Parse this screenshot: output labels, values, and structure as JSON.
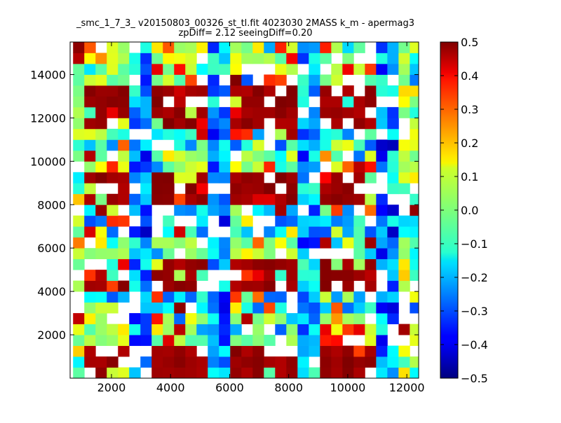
{
  "chart_data": {
    "type": "heatmap",
    "title": "_smc_1_7_3_ v20150803_00326_st_tl.fit 4023030 2MASS k_m - apermag3",
    "subtitle": "zpDiff= 2.12 seeingDiff=0.20",
    "xlabel": "",
    "ylabel": "",
    "xlim": [
      600,
      12400
    ],
    "ylim": [
      0,
      15500
    ],
    "xticks": [
      "2000",
      "4000",
      "6000",
      "8000",
      "10000",
      "12000"
    ],
    "yticks": [
      "2000",
      "4000",
      "6000",
      "8000",
      "10000",
      "12000",
      "14000"
    ],
    "x_tick_values": [
      2000,
      4000,
      6000,
      8000,
      10000,
      12000
    ],
    "y_tick_values": [
      2000,
      4000,
      6000,
      8000,
      10000,
      12000,
      14000
    ],
    "grid": false,
    "colormap": "jet",
    "vmin": -0.5,
    "vmax": 0.5,
    "colorbar_ticks": [
      "0.5",
      "0.4",
      "0.3",
      "0.2",
      "0.1",
      "0.0",
      "−0.1",
      "−0.2",
      "−0.3",
      "−0.4",
      "−0.5"
    ],
    "colorbar_tick_values": [
      0.5,
      0.4,
      0.3,
      0.2,
      0.1,
      0.0,
      -0.1,
      -0.2,
      -0.3,
      -0.4,
      -0.5
    ],
    "grid_cols": 32,
    "grid_rows": 31,
    "cell_width": 380,
    "cell_height": 500,
    "x_start": 700,
    "y_start": 0,
    "pattern_seed": 20150803,
    "row_bands": [
      {
        "from": 0,
        "to": 2,
        "type": "A"
      },
      {
        "from": 3,
        "to": 5,
        "type": "B"
      },
      {
        "from": 6,
        "to": 7,
        "type": "B2"
      },
      {
        "from": 8,
        "to": 10,
        "type": "A"
      },
      {
        "from": 11,
        "to": 12,
        "type": "B"
      },
      {
        "from": 13,
        "to": 15,
        "type": "B2"
      },
      {
        "from": 16,
        "to": 18,
        "type": "A"
      },
      {
        "from": 19,
        "to": 20,
        "type": "B"
      },
      {
        "from": 21,
        "to": 22,
        "type": "B2"
      },
      {
        "from": 23,
        "to": 26,
        "type": "A"
      },
      {
        "from": 27,
        "to": 30,
        "type": "B"
      }
    ],
    "column_bands": [
      {
        "from": 0,
        "to": 0,
        "type": "edge"
      },
      {
        "from": 1,
        "to": 4,
        "type": "red"
      },
      {
        "from": 5,
        "to": 6,
        "type": "blue"
      },
      {
        "from": 7,
        "to": 11,
        "type": "red"
      },
      {
        "from": 12,
        "to": 13,
        "type": "blue"
      },
      {
        "from": 14,
        "to": 19,
        "type": "red"
      },
      {
        "from": 20,
        "to": 21,
        "type": "blue"
      },
      {
        "from": 22,
        "to": 26,
        "type": "red"
      },
      {
        "from": 27,
        "to": 28,
        "type": "blue"
      },
      {
        "from": 29,
        "to": 31,
        "type": "edge"
      }
    ]
  }
}
